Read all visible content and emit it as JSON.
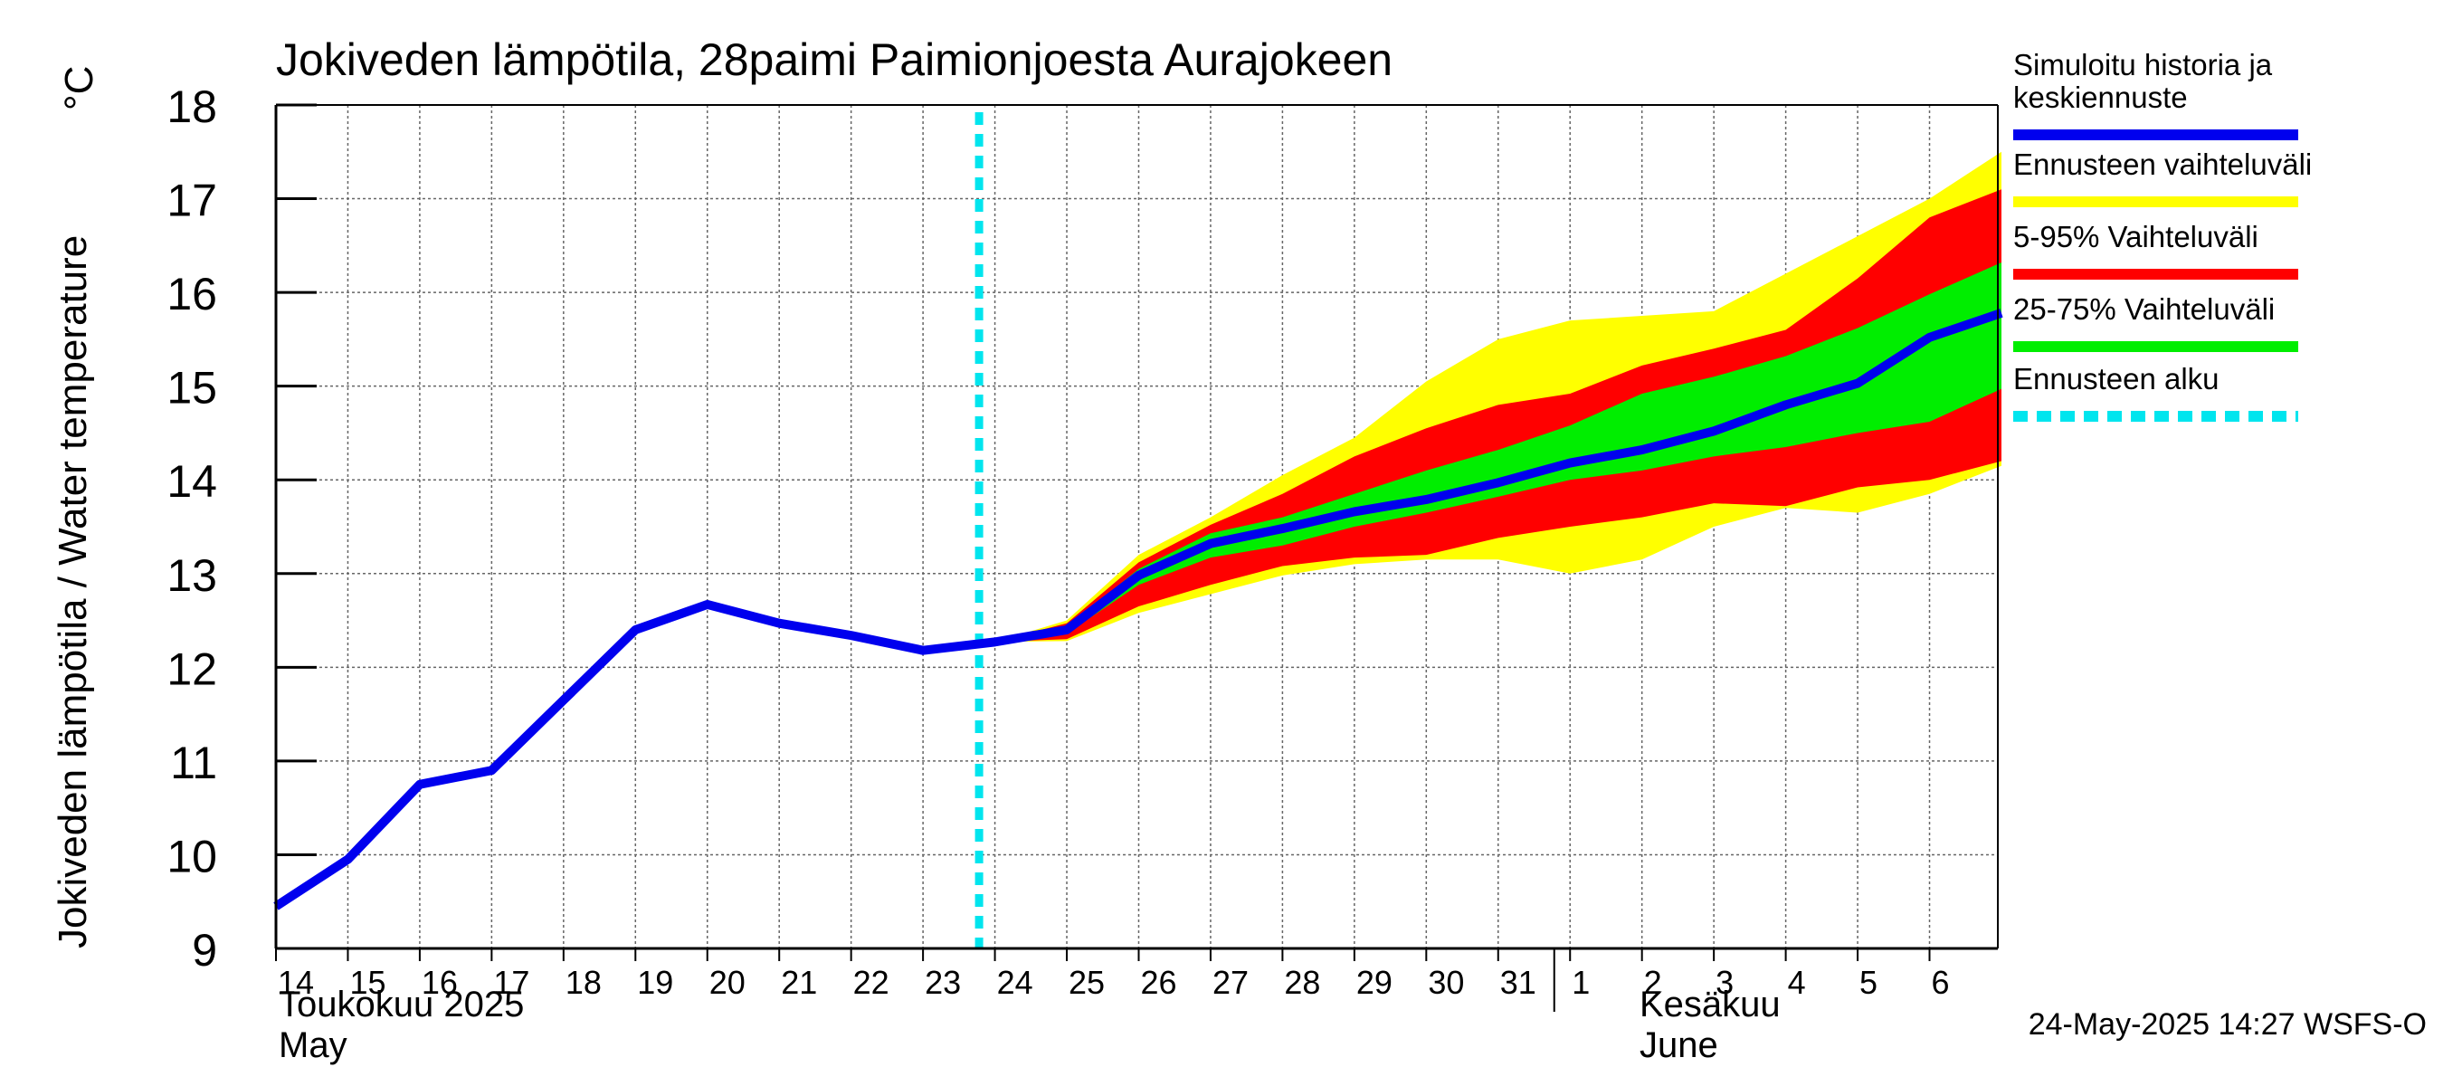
{
  "chart_data": {
    "type": "area",
    "title": "Jokiveden lämpötila, 28paimi Paimionjoesta Aurajokeen",
    "ylabel": "Jokiveden lämpötila / Water temperature",
    "yunit": "°C",
    "ylim": [
      9,
      18
    ],
    "yticks": [
      9,
      10,
      11,
      12,
      13,
      14,
      15,
      16,
      17,
      18
    ],
    "grid": true,
    "legend_position": "right",
    "x_ticks": [
      "2025-05-14",
      "2025-05-15",
      "2025-05-16",
      "2025-05-17",
      "2025-05-18",
      "2025-05-19",
      "2025-05-20",
      "2025-05-21",
      "2025-05-22",
      "2025-05-23",
      "2025-05-24",
      "2025-05-25",
      "2025-05-26",
      "2025-05-27",
      "2025-05-28",
      "2025-05-29",
      "2025-05-30",
      "2025-05-31",
      "2025-06-01",
      "2025-06-02",
      "2025-06-03",
      "2025-06-04",
      "2025-06-05",
      "2025-06-06"
    ],
    "x_tick_labels": [
      "14",
      "15",
      "16",
      "17",
      "18",
      "19",
      "20",
      "21",
      "22",
      "23",
      "24",
      "25",
      "26",
      "27",
      "28",
      "29",
      "30",
      "31",
      "1",
      "2",
      "3",
      "4",
      "5",
      "6"
    ],
    "month_labels": [
      {
        "line1": "Toukokuu  2025",
        "line2": "May"
      },
      {
        "line1": "Kesäkuu",
        "line2": "June"
      }
    ],
    "forecast_start": "2025-05-24",
    "timestamp": "24-May-2025 14:27 WSFS-O",
    "series": [
      {
        "name": "Simuloitu historia ja keskiennuste",
        "color": "#0000ee",
        "x": [
          "2025-05-14",
          "2025-05-15",
          "2025-05-16",
          "2025-05-17",
          "2025-05-18",
          "2025-05-19",
          "2025-05-20",
          "2025-05-21",
          "2025-05-22",
          "2025-05-23",
          "2025-05-24",
          "2025-05-25",
          "2025-05-26",
          "2025-05-27",
          "2025-05-28",
          "2025-05-29",
          "2025-05-30",
          "2025-05-31",
          "2025-06-01",
          "2025-06-02",
          "2025-06-03",
          "2025-06-04",
          "2025-06-05",
          "2025-06-06",
          "2025-06-07"
        ],
        "y": [
          9.45,
          9.95,
          10.75,
          10.9,
          11.65,
          12.4,
          12.67,
          12.47,
          12.34,
          12.18,
          12.27,
          12.4,
          12.98,
          13.32,
          13.48,
          13.66,
          13.79,
          13.97,
          14.18,
          14.32,
          14.52,
          14.8,
          15.03,
          15.52,
          15.78
        ]
      }
    ],
    "bands": [
      {
        "name": "Ennusteen vaihteluväli",
        "color": "#ffff00",
        "x": [
          "2025-05-24",
          "2025-05-25",
          "2025-05-26",
          "2025-05-27",
          "2025-05-28",
          "2025-05-29",
          "2025-05-30",
          "2025-05-31",
          "2025-06-01",
          "2025-06-02",
          "2025-06-03",
          "2025-06-04",
          "2025-06-05",
          "2025-06-06",
          "2025-06-07"
        ],
        "upper": [
          12.27,
          12.5,
          13.2,
          13.6,
          14.05,
          14.45,
          15.05,
          15.5,
          15.7,
          15.75,
          15.8,
          16.2,
          16.6,
          17.0,
          17.5
        ],
        "lower": [
          12.27,
          12.28,
          12.58,
          12.78,
          12.98,
          13.1,
          13.15,
          13.15,
          13.0,
          13.15,
          13.5,
          13.7,
          13.65,
          13.85,
          14.15
        ]
      },
      {
        "name": "5-95% Vaihteluväli",
        "color": "#ff0000",
        "x": [
          "2025-05-24",
          "2025-05-25",
          "2025-05-26",
          "2025-05-27",
          "2025-05-28",
          "2025-05-29",
          "2025-05-30",
          "2025-05-31",
          "2025-06-01",
          "2025-06-02",
          "2025-06-03",
          "2025-06-04",
          "2025-06-05",
          "2025-06-06",
          "2025-06-07"
        ],
        "upper": [
          12.27,
          12.47,
          13.12,
          13.52,
          13.85,
          14.25,
          14.55,
          14.8,
          14.92,
          15.22,
          15.4,
          15.6,
          16.15,
          16.8,
          17.1
        ],
        "lower": [
          12.27,
          12.3,
          12.65,
          12.88,
          13.08,
          13.17,
          13.2,
          13.38,
          13.5,
          13.6,
          13.75,
          13.72,
          13.92,
          14.0,
          14.2
        ]
      },
      {
        "name": "25-75% Vaihteluväli",
        "color": "#00ee00",
        "x": [
          "2025-05-24",
          "2025-05-25",
          "2025-05-26",
          "2025-05-27",
          "2025-05-28",
          "2025-05-29",
          "2025-05-30",
          "2025-05-31",
          "2025-06-01",
          "2025-06-02",
          "2025-06-03",
          "2025-06-04",
          "2025-06-05",
          "2025-06-06",
          "2025-06-07"
        ],
        "upper": [
          12.27,
          12.43,
          13.05,
          13.43,
          13.6,
          13.85,
          14.1,
          14.32,
          14.58,
          14.92,
          15.1,
          15.32,
          15.62,
          15.98,
          16.32
        ],
        "lower": [
          12.27,
          12.36,
          12.88,
          13.17,
          13.3,
          13.5,
          13.65,
          13.82,
          14.0,
          14.1,
          14.25,
          14.35,
          14.5,
          14.62,
          14.97
        ]
      }
    ],
    "legend": [
      {
        "label_lines": [
          "Simuloitu historia ja",
          "keskiennuste"
        ],
        "color": "#0000ee",
        "style": "solid"
      },
      {
        "label_lines": [
          "Ennusteen vaihteluväli"
        ],
        "color": "#ffff00",
        "style": "solid"
      },
      {
        "label_lines": [
          "5-95% Vaihteluväli"
        ],
        "color": "#ff0000",
        "style": "solid"
      },
      {
        "label_lines": [
          "25-75% Vaihteluväli"
        ],
        "color": "#00ee00",
        "style": "solid"
      },
      {
        "label_lines": [
          "Ennusteen alku"
        ],
        "color": "#00e5ee",
        "style": "dashed"
      }
    ]
  }
}
